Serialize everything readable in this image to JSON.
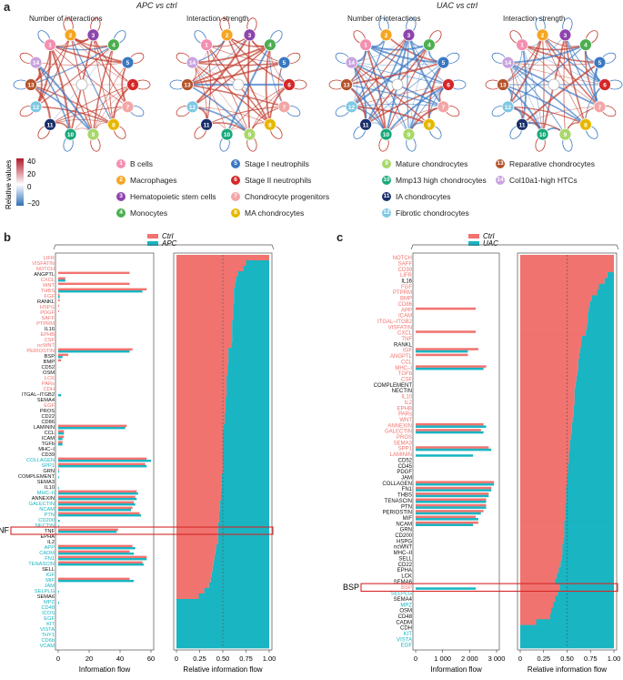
{
  "panel_a": {
    "letter": "a",
    "apc_title": "APC vs ctrl",
    "uac_title": "UAC vs ctrl",
    "sub_interactions": "Number of interactions",
    "sub_strength": "Interaction strength",
    "colorbar": {
      "title": "Relative values",
      "ticks": [
        "40",
        "20",
        "0",
        "−20"
      ],
      "pos_color": "#c0392b",
      "neg_color": "#2f6fb5"
    },
    "nodes": [
      {
        "n": "1",
        "label": "B cells",
        "color": "#f48fb1"
      },
      {
        "n": "2",
        "label": "Macrophages",
        "color": "#f5a623"
      },
      {
        "n": "3",
        "label": "Hematopoietic stem cells",
        "color": "#8e44ad"
      },
      {
        "n": "4",
        "label": "Monocytes",
        "color": "#4caf50"
      },
      {
        "n": "5",
        "label": "Stage I neutrophils",
        "color": "#3a78c2"
      },
      {
        "n": "6",
        "label": "Stage II neutrophils",
        "color": "#d62728"
      },
      {
        "n": "7",
        "label": "Chondrocyte progenitors",
        "color": "#f4a6a6"
      },
      {
        "n": "8",
        "label": "MA chondrocytes",
        "color": "#e6b800"
      },
      {
        "n": "9",
        "label": "Mature chondrocytes",
        "color": "#a8d86a"
      },
      {
        "n": "10",
        "label": "Mmp13 high chondrocytes",
        "color": "#1aa97a"
      },
      {
        "n": "11",
        "label": "IA chondrocytes",
        "color": "#1a2f6b"
      },
      {
        "n": "12",
        "label": "Fibrotic chondrocytes",
        "color": "#7ec8e3"
      },
      {
        "n": "13",
        "label": "Reparative chondrocytes",
        "color": "#b5532a"
      },
      {
        "n": "14",
        "label": "Col10a1-high HTCs",
        "color": "#c9a3e0"
      }
    ]
  },
  "panel_b": {
    "letter": "b",
    "legend": [
      {
        "label": "Ctrl",
        "color": "#f0736f"
      },
      {
        "label": "APC",
        "color": "#19b5c2"
      }
    ],
    "left_xlabel": "Information flow",
    "right_xlabel": "Relative information flow",
    "left_ticks": [
      "0",
      "20",
      "40",
      "60"
    ],
    "right_ticks": [
      "0",
      "0.25",
      "0.50",
      "0.75",
      "1.00"
    ],
    "highlight": "TNF"
  },
  "panel_c": {
    "letter": "c",
    "legend": [
      {
        "label": "Ctrl",
        "color": "#f0736f"
      },
      {
        "label": "UAC",
        "color": "#19b5c2"
      }
    ],
    "left_xlabel": "Information flow",
    "right_xlabel": "Relative information flow",
    "left_ticks": [
      "0",
      "1 000",
      "2 000",
      "3 000"
    ],
    "right_ticks": [
      "0",
      "0.25",
      "0.50",
      "0.75",
      "1.00"
    ],
    "highlight": "BSP"
  },
  "chart_data": [
    {
      "type": "bar",
      "title": "APC vs ctrl information flow",
      "xlabel": "Information flow",
      "xlim": [
        0,
        65
      ],
      "colors": {
        "ctrl": "#f0736f",
        "treat": "#19b5c2",
        "ctrl_text": "#f0736f",
        "treat_text": "#19b5c2",
        "neutral": "#111111"
      },
      "categories": [
        "LIFR",
        "VISFATIN",
        "NOTCH",
        "ANGPTL",
        "CXCL",
        "WNT",
        "THBS",
        "FGF",
        "RANKL",
        "HSPG",
        "PDGF",
        "SAFF",
        "PTPRM",
        "IL16",
        "EPHB",
        "CSF",
        "ncWNT",
        "PERIOSTIN",
        "BSP",
        "BMP",
        "CD52",
        "OSM",
        "LCK",
        "PARs",
        "CDH",
        "ITGAL–ITGB2",
        "SEMA4",
        "EGF",
        "PROS",
        "CD22",
        "CD86",
        "LAMININ",
        "CCL",
        "ICAM",
        "TGFb",
        "MHC–I",
        "CD39",
        "COLLAGEN",
        "SPP1",
        "GRN",
        "COMPLEMENT",
        "SEMA3",
        "IL10",
        "MHC–II",
        "ANNEXIN",
        "GALECTIN",
        "NCAM",
        "PTN",
        "CD200",
        "NECTIN",
        "TNF",
        "EPHA",
        "IL2",
        "APP",
        "CADM",
        "FN1",
        "TENASCIN",
        "SELL",
        "IGF",
        "MIF",
        "JAM",
        "SELPLG",
        "SEMA6",
        "MPZ",
        "CD48",
        "ICOS",
        "EGF",
        "KIT",
        "VISTA",
        "THY1",
        "CD6b",
        "VCAM"
      ],
      "label_type": [
        "c",
        "c",
        "c",
        "n",
        "c",
        "c",
        "c",
        "c",
        "n",
        "c",
        "c",
        "c",
        "c",
        "n",
        "c",
        "c",
        "c",
        "c",
        "n",
        "n",
        "n",
        "n",
        "c",
        "c",
        "c",
        "n",
        "n",
        "c",
        "n",
        "n",
        "n",
        "n",
        "n",
        "n",
        "n",
        "n",
        "n",
        "t",
        "t",
        "n",
        "n",
        "n",
        "n",
        "t",
        "n",
        "t",
        "t",
        "t",
        "t",
        "t",
        "n",
        "n",
        "n",
        "t",
        "t",
        "t",
        "t",
        "n",
        "t",
        "t",
        "t",
        "t",
        "n",
        "t",
        "t",
        "t",
        "t",
        "t",
        "t",
        "t",
        "t",
        "t"
      ],
      "series": [
        {
          "name": "Ctrl",
          "values": [
            0,
            0,
            0,
            50,
            5,
            50,
            62,
            1,
            1,
            0.5,
            0.5,
            0,
            0,
            0,
            0,
            0,
            0,
            52,
            7,
            2,
            0,
            0,
            0,
            0,
            0,
            0,
            0,
            0,
            0,
            0,
            0,
            48,
            4,
            4,
            3,
            0,
            0,
            62,
            61,
            0.5,
            0,
            0,
            0,
            55,
            54,
            53,
            52,
            57,
            0,
            0,
            42,
            0,
            0,
            52,
            50,
            62,
            59,
            0,
            0,
            50,
            0,
            0,
            0,
            0,
            0,
            0,
            0,
            0,
            0,
            0,
            0,
            0
          ]
        },
        {
          "name": "APC",
          "values": [
            0,
            0,
            0,
            0,
            5,
            0,
            59,
            1,
            0,
            0,
            0,
            0,
            0,
            0,
            0,
            0,
            0,
            50,
            3,
            0,
            0,
            0,
            0,
            0,
            0,
            2,
            0,
            0,
            0,
            0,
            0,
            47,
            4,
            3,
            3,
            0,
            0,
            65,
            62,
            0.5,
            0.5,
            0,
            0.5,
            56,
            55,
            54,
            51,
            58,
            1,
            0.5,
            41,
            0,
            0,
            54,
            53,
            62,
            60,
            0,
            0,
            53,
            0,
            0.5,
            0,
            0.5,
            0,
            0,
            0,
            0,
            0,
            0,
            0,
            0
          ]
        },
        {
          "name": "Relative Ctrl",
          "values": [
            1.0,
            0.75,
            0.72,
            0.66,
            0.64,
            0.63,
            0.62,
            0.62,
            0.62,
            0.61,
            0.61,
            0.61,
            0.6,
            0.6,
            0.6,
            0.6,
            0.59,
            0.56,
            0.56,
            0.56,
            0.55,
            0.55,
            0.54,
            0.54,
            0.54,
            0.54,
            0.53,
            0.53,
            0.53,
            0.52,
            0.52,
            0.51,
            0.5,
            0.5,
            0.5,
            0.5,
            0.5,
            0.5,
            0.5,
            0.5,
            0.49,
            0.49,
            0.49,
            0.48,
            0.48,
            0.47,
            0.47,
            0.46,
            0.46,
            0.45,
            0.45,
            0.45,
            0.45,
            0.43,
            0.42,
            0.41,
            0.4,
            0.39,
            0.38,
            0.37,
            0.35,
            0.3,
            0.24,
            0,
            0,
            0,
            0,
            0,
            0,
            0,
            0,
            0
          ]
        }
      ]
    },
    {
      "type": "bar",
      "title": "UAC vs ctrl information flow",
      "xlabel": "Information flow",
      "xlim": [
        0,
        3100
      ],
      "colors": {
        "ctrl": "#f0736f",
        "treat": "#19b5c2",
        "ctrl_text": "#f0736f",
        "treat_text": "#19b5c2",
        "neutral": "#111111"
      },
      "categories": [
        "NOTCH",
        "SAFF",
        "CD39",
        "LIFR",
        "IL16",
        "FGF",
        "PTPRM",
        "BMP",
        "CD86",
        "APP",
        "ICAM",
        "ITGAL–ITGB2",
        "VISFATIN",
        "CXCL",
        "TNF",
        "RANKL",
        "IGF",
        "ANGPTL",
        "CCL",
        "MHC–I",
        "TGFb",
        "CSF",
        "COMPLEMENT",
        "NECTIN",
        "IL10",
        "IL2",
        "EPHB",
        "PARs",
        "WNT",
        "ANNEXIN",
        "GALECTIN",
        "PROS",
        "SEMA3",
        "SPP1",
        "LAMININ",
        "CD52",
        "CD45",
        "PDGF",
        "JAM",
        "COLLAGEN",
        "FN1",
        "THBS",
        "TENASCIN",
        "PTN",
        "PERIOSTIN",
        "MIF",
        "NCAM",
        "GRN",
        "CD200",
        "HSPG",
        "ncWNT",
        "MHC–II",
        "SELL",
        "CD22",
        "EPHA",
        "LCK",
        "SEMA6",
        "BSP",
        "SELPLG",
        "SEMA4",
        "MPZ",
        "OSM",
        "CD48",
        "CADM",
        "CDH",
        "KIT",
        "VISTA",
        "EGF"
      ],
      "label_type": [
        "c",
        "c",
        "c",
        "c",
        "n",
        "c",
        "c",
        "c",
        "c",
        "c",
        "c",
        "c",
        "c",
        "c",
        "c",
        "n",
        "c",
        "c",
        "c",
        "c",
        "c",
        "c",
        "n",
        "n",
        "c",
        "c",
        "c",
        "c",
        "c",
        "c",
        "c",
        "c",
        "c",
        "c",
        "c",
        "n",
        "n",
        "n",
        "n",
        "n",
        "n",
        "n",
        "n",
        "n",
        "n",
        "n",
        "n",
        "n",
        "n",
        "n",
        "n",
        "n",
        "n",
        "n",
        "n",
        "n",
        "n",
        "c",
        "t",
        "n",
        "t",
        "n",
        "n",
        "n",
        "n",
        "t",
        "t",
        "t"
      ],
      "series": [
        {
          "name": "Ctrl",
          "values": [
            0,
            0,
            0,
            0,
            0,
            0,
            0,
            0,
            0,
            2300,
            0,
            0,
            0,
            2300,
            0,
            0,
            2400,
            2000,
            0,
            2700,
            0,
            0,
            0,
            0,
            0,
            0,
            0,
            0,
            0,
            2600,
            2500,
            0,
            0,
            2800,
            0,
            0,
            0,
            0,
            0,
            3000,
            2900,
            2800,
            2700,
            2700,
            2600,
            2300,
            2400,
            0,
            0,
            0,
            0,
            0,
            0,
            0,
            0,
            0,
            0,
            0,
            0,
            0,
            0,
            0,
            0,
            0,
            0,
            0,
            0,
            0
          ]
        },
        {
          "name": "UAC",
          "values": [
            0,
            0,
            0,
            0,
            0,
            0,
            0,
            0,
            0,
            0,
            0,
            0,
            0,
            0,
            0,
            0,
            2000,
            0,
            0,
            2600,
            0,
            0,
            0,
            0,
            0,
            0,
            0,
            0,
            0,
            2700,
            2600,
            0,
            0,
            2900,
            2200,
            0,
            0,
            0,
            0,
            3000,
            2900,
            2800,
            2700,
            2700,
            2500,
            2400,
            2200,
            0,
            0,
            0,
            0,
            0,
            0,
            0,
            0,
            0,
            0,
            2300,
            0,
            0,
            0,
            0,
            0,
            0,
            0,
            0,
            0,
            0
          ]
        },
        {
          "name": "Relative Ctrl",
          "values": [
            1.0,
            1.0,
            1.0,
            0.93,
            0.9,
            0.84,
            0.82,
            0.76,
            0.74,
            0.73,
            0.72,
            0.72,
            0.71,
            0.7,
            0.66,
            0.65,
            0.64,
            0.63,
            0.62,
            0.62,
            0.61,
            0.6,
            0.59,
            0.58,
            0.58,
            0.58,
            0.57,
            0.57,
            0.56,
            0.55,
            0.55,
            0.54,
            0.53,
            0.53,
            0.52,
            0.52,
            0.51,
            0.51,
            0.5,
            0.5,
            0.49,
            0.49,
            0.49,
            0.48,
            0.48,
            0.48,
            0.47,
            0.47,
            0.47,
            0.46,
            0.45,
            0.45,
            0.44,
            0.43,
            0.41,
            0.39,
            0.37,
            0.42,
            0.4,
            0.37,
            0.35,
            0.33,
            0.32,
            0.17,
            0,
            0,
            0,
            0
          ]
        }
      ]
    }
  ]
}
